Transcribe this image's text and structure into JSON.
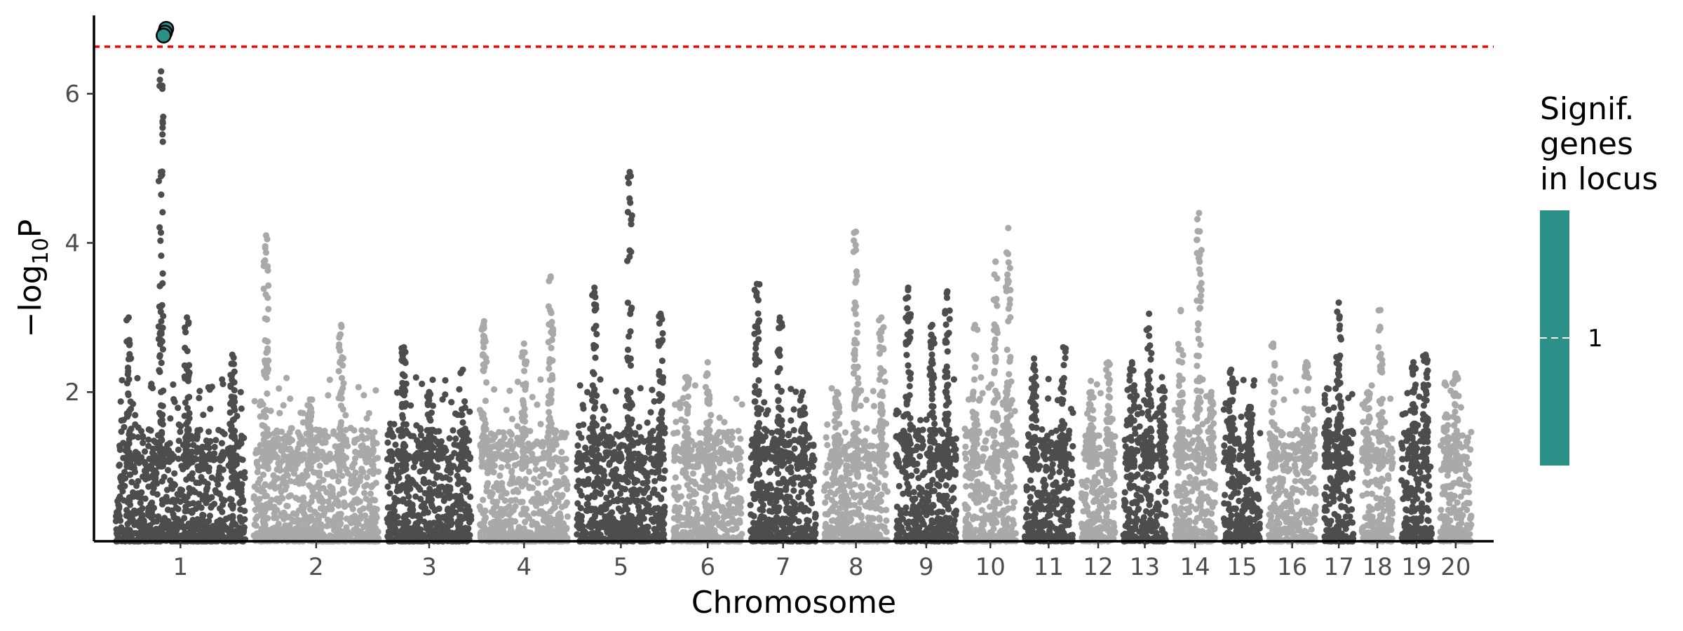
{
  "chart_data": {
    "type": "scatter",
    "title": "",
    "xlabel": "Chromosome",
    "ylabel_prefix": "−log",
    "ylabel_sub": "10",
    "ylabel_suffix": "P",
    "ylim": [
      0,
      7.05
    ],
    "yticks": [
      2,
      4,
      6
    ],
    "grid": false,
    "significance_threshold": 6.63,
    "threshold_color": "#ff0000",
    "colors": {
      "dark": "#4d4d4d",
      "light": "#a9a9a9",
      "highlight": "#2a9088"
    },
    "chromosomes": [
      {
        "label": "1",
        "length": 2.0,
        "peaks": [
          [
            0.35,
            6.3
          ],
          [
            0.1,
            3.0
          ],
          [
            0.55,
            3.0
          ],
          [
            0.9,
            2.5
          ]
        ]
      },
      {
        "label": "2",
        "length": 1.93,
        "peaks": [
          [
            0.1,
            4.1
          ],
          [
            0.7,
            2.9
          ],
          [
            0.45,
            1.9
          ]
        ]
      },
      {
        "label": "3",
        "length": 1.3,
        "peaks": [
          [
            0.2,
            2.6
          ],
          [
            0.9,
            2.3
          ],
          [
            0.5,
            2.0
          ]
        ]
      },
      {
        "label": "4",
        "length": 1.37,
        "peaks": [
          [
            0.8,
            3.55
          ],
          [
            0.5,
            2.65
          ],
          [
            0.05,
            2.95
          ]
        ]
      },
      {
        "label": "5",
        "length": 1.36,
        "peaks": [
          [
            0.2,
            3.4
          ],
          [
            0.6,
            4.95
          ],
          [
            0.95,
            3.05
          ]
        ]
      },
      {
        "label": "6",
        "length": 1.06,
        "peaks": [
          [
            0.5,
            2.4
          ],
          [
            0.2,
            2.2
          ]
        ]
      },
      {
        "label": "7",
        "length": 1.01,
        "peaks": [
          [
            0.1,
            3.45
          ],
          [
            0.45,
            3.0
          ],
          [
            0.8,
            2.0
          ]
        ]
      },
      {
        "label": "8",
        "length": 0.98,
        "peaks": [
          [
            0.5,
            4.15
          ],
          [
            0.9,
            3.0
          ],
          [
            0.2,
            2.0
          ]
        ]
      },
      {
        "label": "9",
        "length": 0.93,
        "peaks": [
          [
            0.2,
            3.4
          ],
          [
            0.6,
            2.9
          ],
          [
            0.85,
            3.35
          ]
        ]
      },
      {
        "label": "10",
        "length": 0.79,
        "peaks": [
          [
            0.6,
            3.75
          ],
          [
            0.85,
            4.2
          ],
          [
            0.2,
            2.9
          ]
        ]
      },
      {
        "label": "11",
        "length": 0.75,
        "peaks": [
          [
            0.2,
            2.45
          ],
          [
            0.8,
            2.6
          ]
        ]
      },
      {
        "label": "12",
        "length": 0.52,
        "peaks": [
          [
            0.8,
            2.4
          ],
          [
            0.3,
            2.0
          ]
        ]
      },
      {
        "label": "13",
        "length": 0.66,
        "peaks": [
          [
            0.2,
            2.4
          ],
          [
            0.6,
            3.05
          ],
          [
            0.9,
            2.2
          ]
        ]
      },
      {
        "label": "14",
        "length": 0.63,
        "peaks": [
          [
            0.15,
            3.1
          ],
          [
            0.6,
            4.4
          ],
          [
            0.9,
            2.0
          ]
        ]
      },
      {
        "label": "15",
        "length": 0.56,
        "peaks": [
          [
            0.2,
            2.3
          ],
          [
            0.7,
            1.8
          ]
        ]
      },
      {
        "label": "16",
        "length": 0.73,
        "peaks": [
          [
            0.1,
            2.65
          ],
          [
            0.8,
            2.4
          ]
        ]
      },
      {
        "label": "17",
        "length": 0.45,
        "peaks": [
          [
            0.5,
            3.2
          ],
          [
            0.1,
            2.05
          ]
        ]
      },
      {
        "label": "18",
        "length": 0.48,
        "peaks": [
          [
            0.6,
            3.1
          ],
          [
            0.2,
            2.0
          ]
        ]
      },
      {
        "label": "19",
        "length": 0.47,
        "peaks": [
          [
            0.4,
            2.4
          ],
          [
            0.8,
            2.5
          ]
        ]
      },
      {
        "label": "20",
        "length": 0.48,
        "peaks": [
          [
            0.5,
            2.25
          ],
          [
            0.2,
            1.7
          ]
        ]
      }
    ],
    "significant_points": [
      {
        "chromosome": "1",
        "position_fraction": 0.39,
        "y": 6.87
      },
      {
        "chromosome": "1",
        "position_fraction": 0.38,
        "y": 6.82
      },
      {
        "chromosome": "1",
        "position_fraction": 0.37,
        "y": 6.78
      }
    ],
    "legend": {
      "title_lines": [
        "Signif.",
        "genes",
        "in locus"
      ],
      "labels": [
        "1"
      ],
      "color": "#2a9088"
    }
  }
}
